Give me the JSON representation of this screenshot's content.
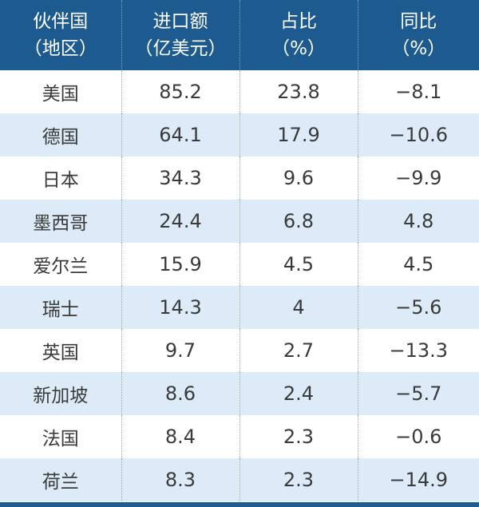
{
  "colors": {
    "header_bg": "#1d5a8f",
    "row_alt_bg": "#dcebf7",
    "text": "#3a3a3a"
  },
  "header": [
    {
      "line1": "伙伴国",
      "line2": "（地区）"
    },
    {
      "line1": "进口额",
      "line2": "（亿美元）"
    },
    {
      "line1": "占比",
      "line2": "（%）"
    },
    {
      "line1": "同比",
      "line2": "（%）"
    }
  ],
  "rows": [
    {
      "partner": "美国",
      "import": "85.2",
      "share": "23.8",
      "yoy": "−8.1"
    },
    {
      "partner": "德国",
      "import": "64.1",
      "share": "17.9",
      "yoy": "−10.6"
    },
    {
      "partner": "日本",
      "import": "34.3",
      "share": "9.6",
      "yoy": "−9.9"
    },
    {
      "partner": "墨西哥",
      "import": "24.4",
      "share": "6.8",
      "yoy": "4.8"
    },
    {
      "partner": "爱尔兰",
      "import": "15.9",
      "share": "4.5",
      "yoy": "4.5"
    },
    {
      "partner": "瑞士",
      "import": "14.3",
      "share": "4",
      "yoy": "−5.6"
    },
    {
      "partner": "英国",
      "import": "9.7",
      "share": "2.7",
      "yoy": "−13.3"
    },
    {
      "partner": "新加坡",
      "import": "8.6",
      "share": "2.4",
      "yoy": "−5.7"
    },
    {
      "partner": "法国",
      "import": "8.4",
      "share": "2.3",
      "yoy": "−0.6"
    },
    {
      "partner": "荷兰",
      "import": "8.3",
      "share": "2.3",
      "yoy": "−14.9"
    }
  ]
}
